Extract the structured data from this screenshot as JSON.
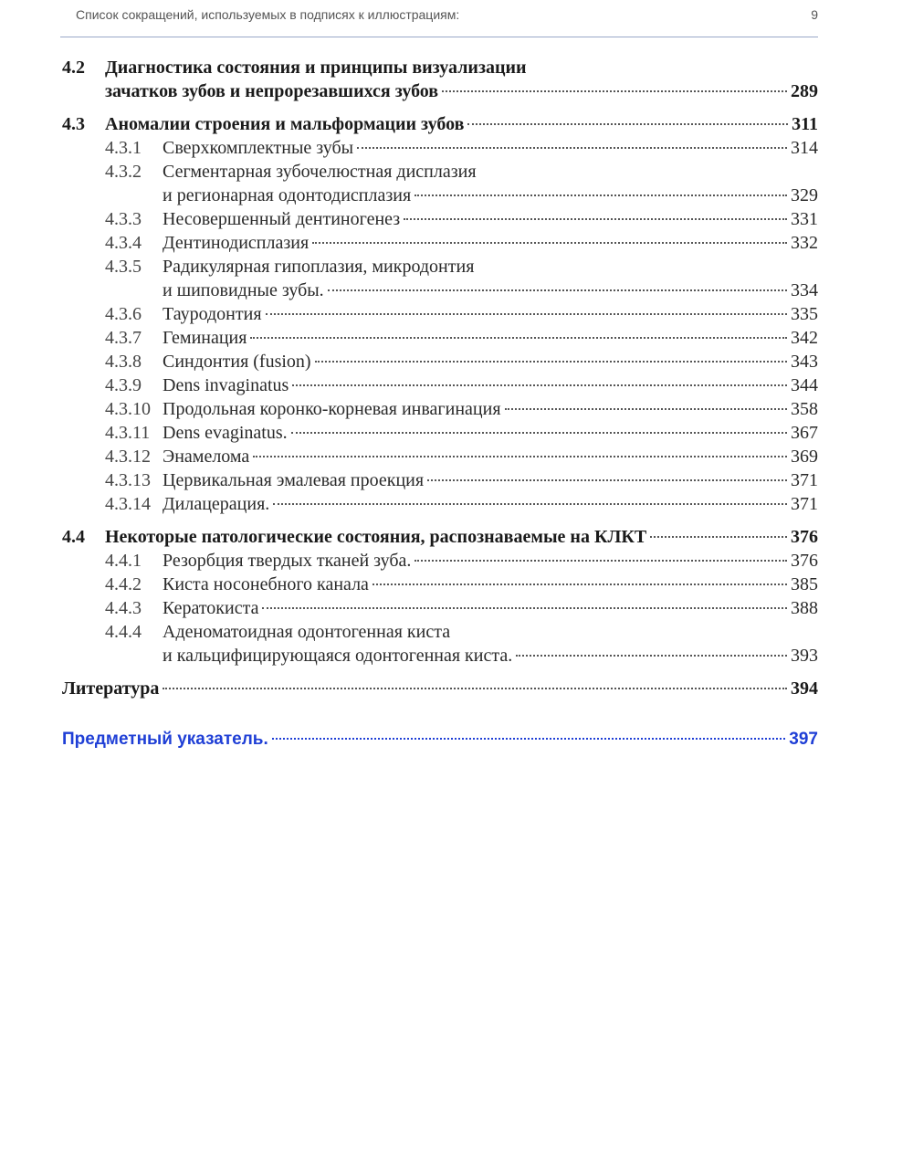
{
  "header": {
    "title": "Список сокращений, используемых в подписях к иллюстрациям:",
    "page_number": "9"
  },
  "accent_color": "#1f3fd6",
  "toc": [
    {
      "level": "major",
      "num": "4.2",
      "lines": [
        "Диагностика состояния и принципы визуализации",
        "зачатков зубов и непрорезавшихся зубов"
      ],
      "page": "289"
    },
    {
      "level": "major",
      "num": "4.3",
      "lines": [
        "Аномалии строения и мальформации зубов"
      ],
      "page": "311",
      "gap": true
    },
    {
      "level": "sub",
      "num": "4.3.1",
      "lines": [
        "Сверхкомплектные зубы"
      ],
      "page": "314"
    },
    {
      "level": "sub",
      "num": "4.3.2",
      "lines": [
        "Сегментарная зубочелюстная дисплазия",
        "и регионарная одонтодисплазия"
      ],
      "page": "329"
    },
    {
      "level": "sub",
      "num": "4.3.3",
      "lines": [
        "Несовершенный дентиногенез"
      ],
      "page": "331"
    },
    {
      "level": "sub",
      "num": "4.3.4",
      "lines": [
        "Дентинодисплазия"
      ],
      "page": "332"
    },
    {
      "level": "sub",
      "num": "4.3.5",
      "lines": [
        "Радикулярная гипоплазия, микродонтия",
        "и шиповидные зубы."
      ],
      "page": "334"
    },
    {
      "level": "sub",
      "num": "4.3.6",
      "lines": [
        "Тауродонтия"
      ],
      "page": "335"
    },
    {
      "level": "sub",
      "num": "4.3.7",
      "lines": [
        "Геминация"
      ],
      "page": "342"
    },
    {
      "level": "sub",
      "num": "4.3.8",
      "lines": [
        "Синдонтия (fusion)"
      ],
      "page": "343"
    },
    {
      "level": "sub",
      "num": "4.3.9",
      "lines": [
        "Dens invaginatus"
      ],
      "page": "344"
    },
    {
      "level": "sub",
      "num": "4.3.10",
      "lines": [
        "Продольная коронко-корневая инвагинация"
      ],
      "page": "358"
    },
    {
      "level": "sub",
      "num": "4.3.11",
      "lines": [
        "Dens evaginatus."
      ],
      "page": "367"
    },
    {
      "level": "sub",
      "num": "4.3.12",
      "lines": [
        "Энамелома"
      ],
      "page": "369"
    },
    {
      "level": "sub",
      "num": "4.3.13",
      "lines": [
        "Цервикальная эмалевая проекция"
      ],
      "page": "371"
    },
    {
      "level": "sub",
      "num": "4.3.14",
      "lines": [
        "Дилацерация."
      ],
      "page": "371"
    },
    {
      "level": "major",
      "num": "4.4",
      "lines": [
        "Некоторые патологические состояния, распознаваемые на КЛКТ"
      ],
      "page": "376",
      "gap": true
    },
    {
      "level": "sub",
      "num": "4.4.1",
      "lines": [
        "Резорбция твердых тканей зуба."
      ],
      "page": "376"
    },
    {
      "level": "sub",
      "num": "4.4.2",
      "lines": [
        "Киста носонебного канала"
      ],
      "page": "385"
    },
    {
      "level": "sub",
      "num": "4.4.3",
      "lines": [
        "Кератокиста"
      ],
      "page": "388"
    },
    {
      "level": "sub",
      "num": "4.4.4",
      "lines": [
        "Аденоматоидная одонтогенная киста",
        "и кальцифицирующаяся одонтогенная киста."
      ],
      "page": "393"
    },
    {
      "level": "plain",
      "num": "",
      "lines": [
        "Литература"
      ],
      "page": "394",
      "gap": true
    },
    {
      "level": "blue",
      "num": "",
      "lines": [
        "Предметный указатель."
      ],
      "page": "397",
      "biggap": true
    }
  ]
}
